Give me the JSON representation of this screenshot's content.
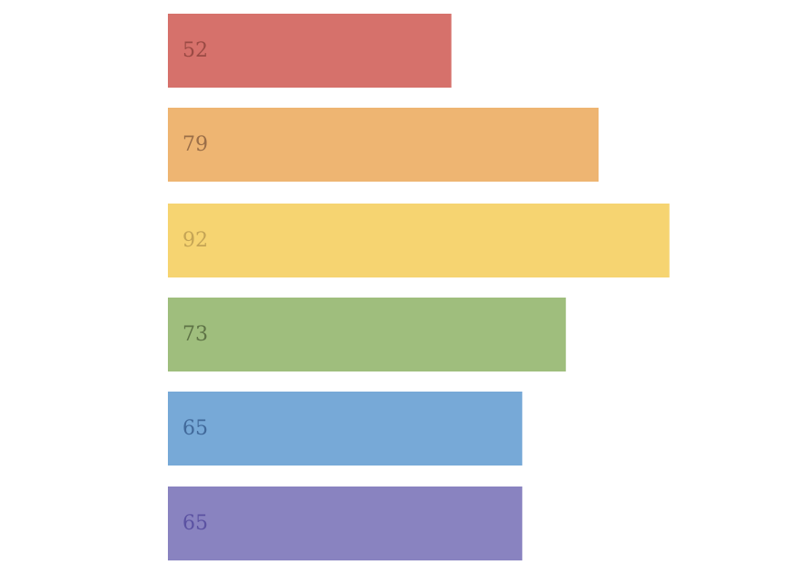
{
  "chart_data": {
    "type": "bar",
    "orientation": "horizontal",
    "categories": [
      "",
      "",
      "",
      "",
      "",
      ""
    ],
    "values": [
      52,
      79,
      92,
      73,
      65,
      65
    ],
    "data_labels": [
      "52",
      "79",
      "92",
      "73",
      "65",
      "65"
    ],
    "title": "",
    "xlabel": "",
    "ylabel": "",
    "xlim": [
      0,
      100
    ],
    "grid": false,
    "legend": "none",
    "colors": [
      "#d6716b",
      "#eeb572",
      "#f6d471",
      "#9fbe7d",
      "#77a9d7",
      "#8983c0"
    ],
    "label_colors": [
      "#9a4a44",
      "#9a6e48",
      "#c4a455",
      "#5e7346",
      "#41699a",
      "#5b52a2"
    ]
  }
}
